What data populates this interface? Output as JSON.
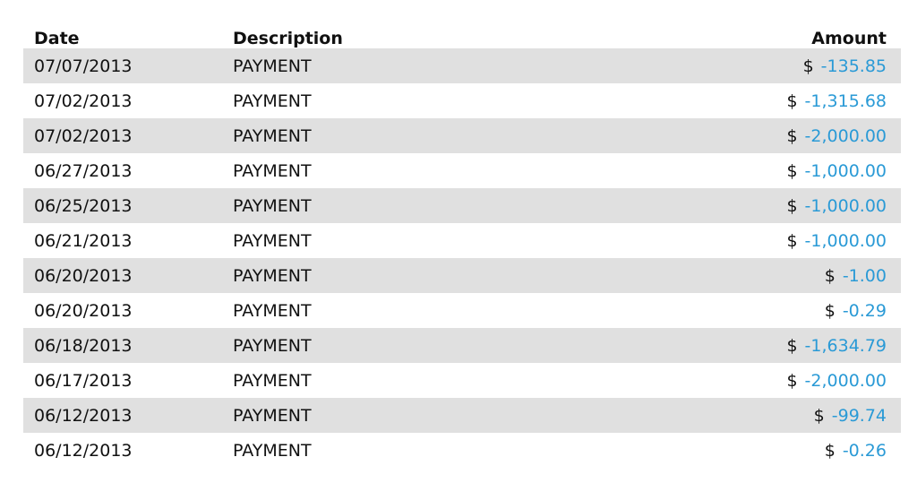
{
  "headers": {
    "date": "Date",
    "description": "Description",
    "amount": "Amount"
  },
  "currency_symbol": "$",
  "colors": {
    "amount": "#2a9ad6",
    "stripe": "#e0e0e0"
  },
  "rows": [
    {
      "date": "07/07/2013",
      "description": "PAYMENT",
      "amount": "-135.85"
    },
    {
      "date": "07/02/2013",
      "description": "PAYMENT",
      "amount": "-1,315.68"
    },
    {
      "date": "07/02/2013",
      "description": "PAYMENT",
      "amount": "-2,000.00"
    },
    {
      "date": "06/27/2013",
      "description": "PAYMENT",
      "amount": "-1,000.00"
    },
    {
      "date": "06/25/2013",
      "description": "PAYMENT",
      "amount": "-1,000.00"
    },
    {
      "date": "06/21/2013",
      "description": "PAYMENT",
      "amount": "-1,000.00"
    },
    {
      "date": "06/20/2013",
      "description": "PAYMENT",
      "amount": "-1.00"
    },
    {
      "date": "06/20/2013",
      "description": "PAYMENT",
      "amount": "-0.29"
    },
    {
      "date": "06/18/2013",
      "description": "PAYMENT",
      "amount": "-1,634.79"
    },
    {
      "date": "06/17/2013",
      "description": "PAYMENT",
      "amount": "-2,000.00"
    },
    {
      "date": "06/12/2013",
      "description": "PAYMENT",
      "amount": "-99.74"
    },
    {
      "date": "06/12/2013",
      "description": "PAYMENT",
      "amount": "-0.26"
    }
  ]
}
